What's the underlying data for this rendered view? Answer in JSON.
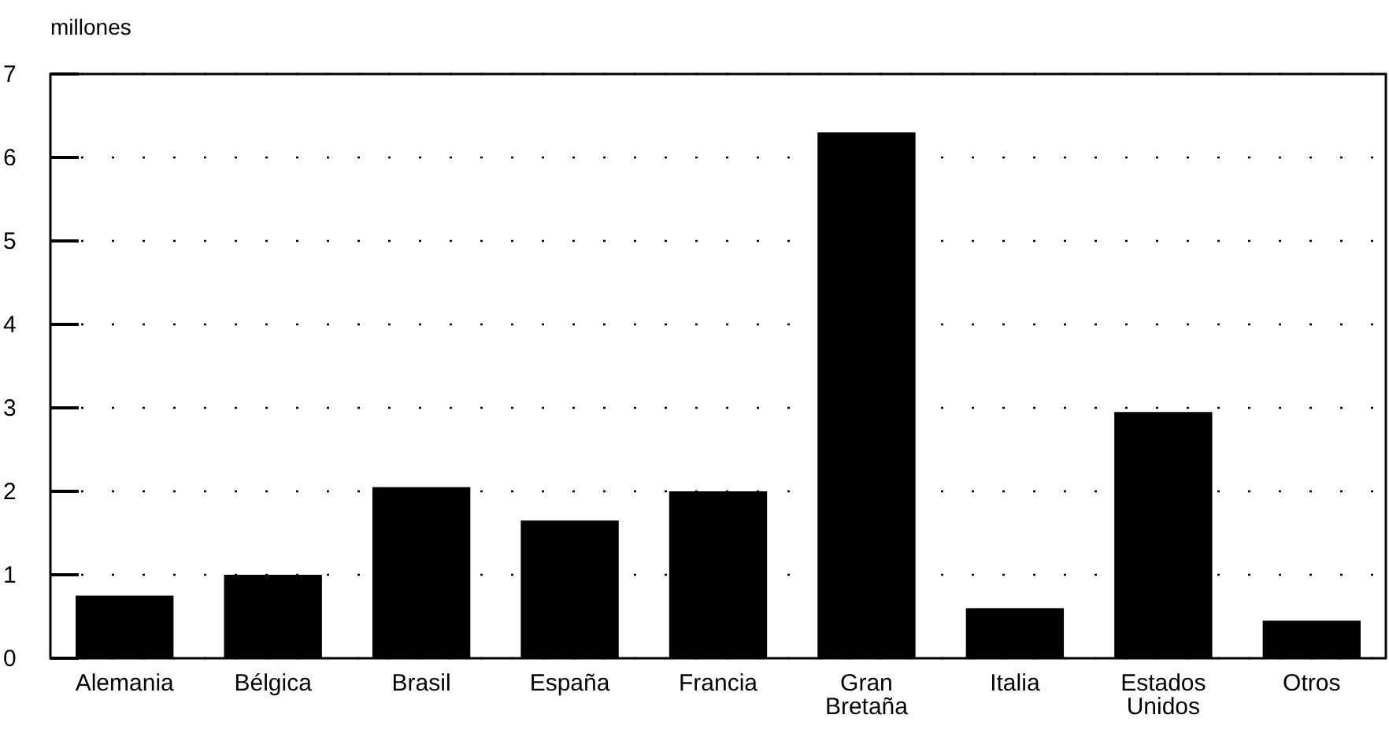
{
  "chart_data": {
    "type": "bar",
    "ylabel": "millones",
    "categories": [
      "Alemania",
      "Bélgica",
      "Brasil",
      "España",
      "Francia",
      "Gran Bretaña",
      "Italia",
      "Estados Unidos",
      "Otros"
    ],
    "values": [
      0.75,
      1.0,
      2.05,
      1.65,
      2.0,
      6.3,
      0.6,
      2.95,
      0.45
    ],
    "color": "#000000",
    "ylim": [
      0,
      7
    ],
    "yticks": [
      0,
      1,
      2,
      3,
      4,
      5,
      6,
      7
    ],
    "grid": "y"
  }
}
